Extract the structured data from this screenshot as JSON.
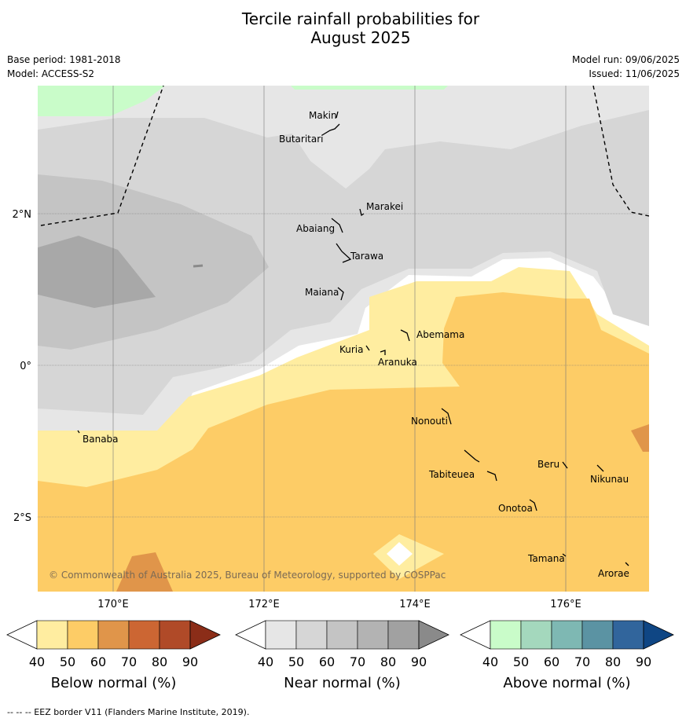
{
  "title_line1": "Tercile rainfall probabilities for",
  "title_line2": "August 2025",
  "base_period": "Base period: 1981-2018",
  "model": "Model: ACCESS-S2",
  "model_run": "Model run: 09/06/2025",
  "issued": "Issued: 11/06/2025",
  "axes": {
    "lat_labels": [
      "2°N",
      "0°",
      "2°S"
    ],
    "lon_labels": [
      "170°E",
      "172°E",
      "174°E",
      "176°E"
    ]
  },
  "places": [
    "Makin",
    "Butaritari",
    "Marakei",
    "Abaiang",
    "Tarawa",
    "Maiana",
    "Abemama",
    "Kuria",
    "Aranuka",
    "Banaba",
    "Nonouti",
    "Tabiteuea",
    "Beru",
    "Nikunau",
    "Onotoa",
    "Tamana",
    "Arorae"
  ],
  "copyright": "© Commonwealth of Australia 2025, Bureau of Meteorology, supported by COSPPac",
  "colorbars": [
    {
      "title": "Below normal (%)",
      "ticks": [
        "40",
        "50",
        "60",
        "70",
        "80",
        "90"
      ],
      "colors": [
        "#ffffff",
        "#ffeda0",
        "#fdcc66",
        "#e0954a",
        "#cc6633",
        "#b04a28",
        "#8b2d18"
      ]
    },
    {
      "title": "Near normal (%)",
      "ticks": [
        "40",
        "50",
        "60",
        "70",
        "80",
        "90"
      ],
      "colors": [
        "#ffffff",
        "#e6e6e6",
        "#d6d6d6",
        "#c4c4c4",
        "#b3b3b3",
        "#a1a1a1",
        "#8a8a8a"
      ]
    },
    {
      "title": "Above normal (%)",
      "ticks": [
        "40",
        "50",
        "60",
        "70",
        "80",
        "90"
      ],
      "colors": [
        "#ffffff",
        "#c9fcc9",
        "#a4d8bd",
        "#7eb8b3",
        "#5b93a3",
        "#31659c",
        "#0f4684"
      ]
    }
  ],
  "footer": "--  --  -- EEZ border V11 (Flanders Marine Institute, 2019)."
}
